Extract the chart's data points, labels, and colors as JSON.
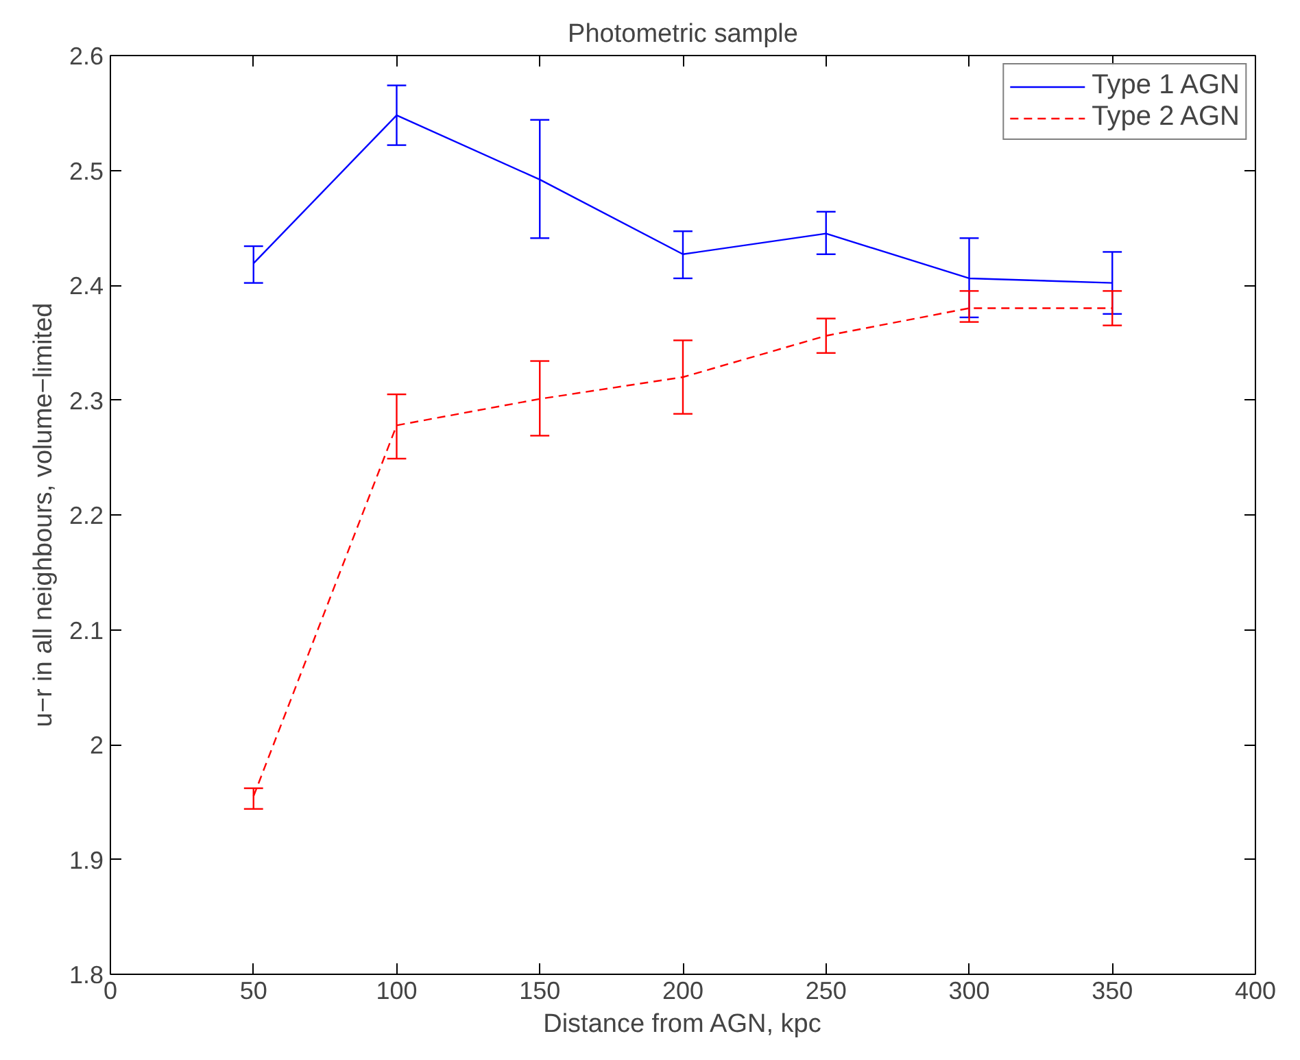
{
  "chart_data": {
    "type": "line",
    "title": "Photometric sample",
    "xlabel": "Distance from AGN, kpc",
    "ylabel": "u−r in all neighbours, volume−limited",
    "x": [
      50,
      100,
      150,
      200,
      250,
      300,
      350
    ],
    "series": [
      {
        "name": "Type 1 AGN",
        "color": "#0000ff",
        "line_style": "solid",
        "values": [
          2.419,
          2.548,
          2.492,
          2.427,
          2.445,
          2.406,
          2.402
        ],
        "errors": [
          [
            2.402,
            2.434
          ],
          [
            2.522,
            2.574
          ],
          [
            2.441,
            2.544
          ],
          [
            2.406,
            2.447
          ],
          [
            2.427,
            2.464
          ],
          [
            2.372,
            2.441
          ],
          [
            2.375,
            2.429
          ]
        ]
      },
      {
        "name": "Type 2 AGN",
        "color": "#ff0000",
        "line_style": "dashed",
        "values": [
          1.955,
          2.278,
          2.301,
          2.32,
          2.356,
          2.38,
          2.38
        ],
        "errors": [
          [
            1.944,
            1.962
          ],
          [
            2.249,
            2.305
          ],
          [
            2.269,
            2.334
          ],
          [
            2.288,
            2.352
          ],
          [
            2.341,
            2.371
          ],
          [
            2.368,
            2.395
          ],
          [
            2.365,
            2.395
          ]
        ]
      }
    ],
    "xlim": [
      0,
      400
    ],
    "xticks": [
      0,
      50,
      100,
      150,
      200,
      250,
      300,
      350,
      400
    ],
    "ylim": [
      1.8,
      2.6
    ],
    "yticks": [
      1.8,
      1.9,
      2,
      2.1,
      2.2,
      2.3,
      2.4,
      2.5,
      2.6
    ],
    "grid": false,
    "legend": "top right",
    "marker": "none"
  }
}
